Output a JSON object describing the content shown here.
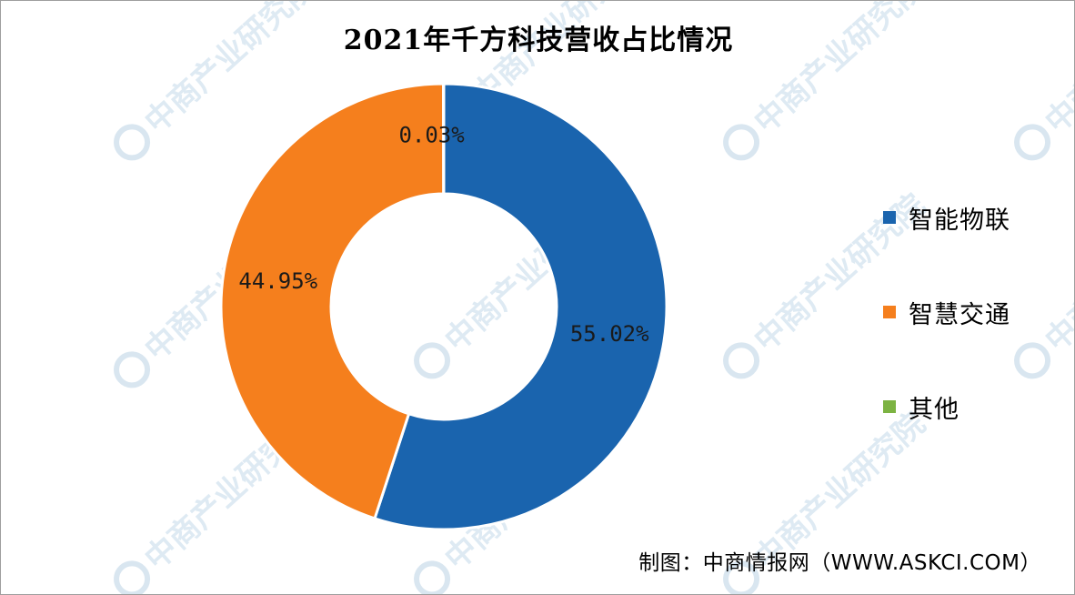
{
  "chart_data": {
    "type": "pie",
    "title": "2021年千方科技营收占比情况",
    "categories": [
      "智能物联",
      "智慧交通",
      "其他"
    ],
    "values": [
      55.02,
      44.95,
      0.03
    ],
    "data_labels": [
      "55.02%",
      "44.95%",
      "0.03%"
    ],
    "colors": [
      "#1a64ae",
      "#f57f1d",
      "#7cb342"
    ],
    "donut": true,
    "legend_position": "right"
  },
  "source_label": "制图：中商情报网（WWW.ASKCI.COM）",
  "watermark_text": "中商产业研究院"
}
